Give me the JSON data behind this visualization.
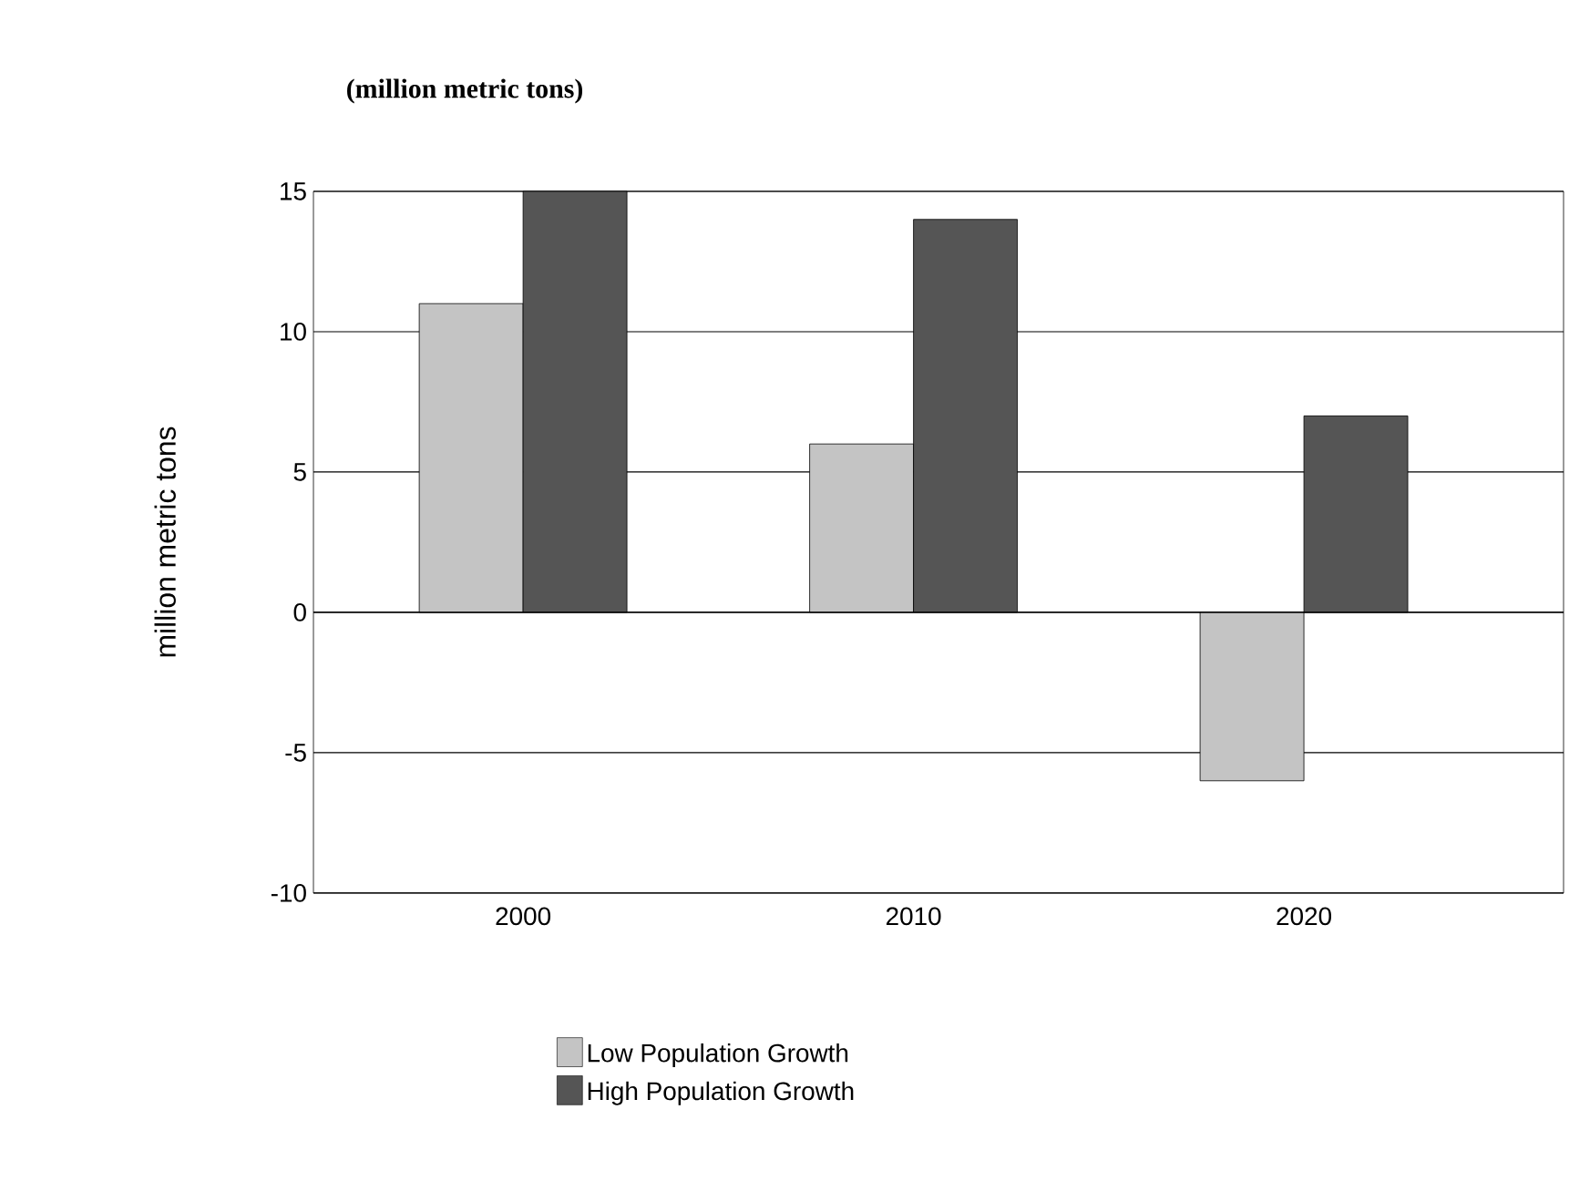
{
  "chart_data": {
    "type": "bar",
    "title": "(million metric tons)",
    "ylabel": "million metric tons",
    "categories": [
      "2000",
      "2010",
      "2020"
    ],
    "series": [
      {
        "name": "Low Population Growth",
        "color": "#c4c4c4",
        "values": [
          11,
          6,
          -6
        ]
      },
      {
        "name": "High Population Growth",
        "color": "#555555",
        "values": [
          15,
          14,
          7
        ]
      }
    ],
    "ylim": [
      -10,
      15
    ],
    "yticks": [
      -10,
      -5,
      0,
      5,
      10,
      15
    ],
    "grid": "y",
    "legend": "bottom"
  }
}
